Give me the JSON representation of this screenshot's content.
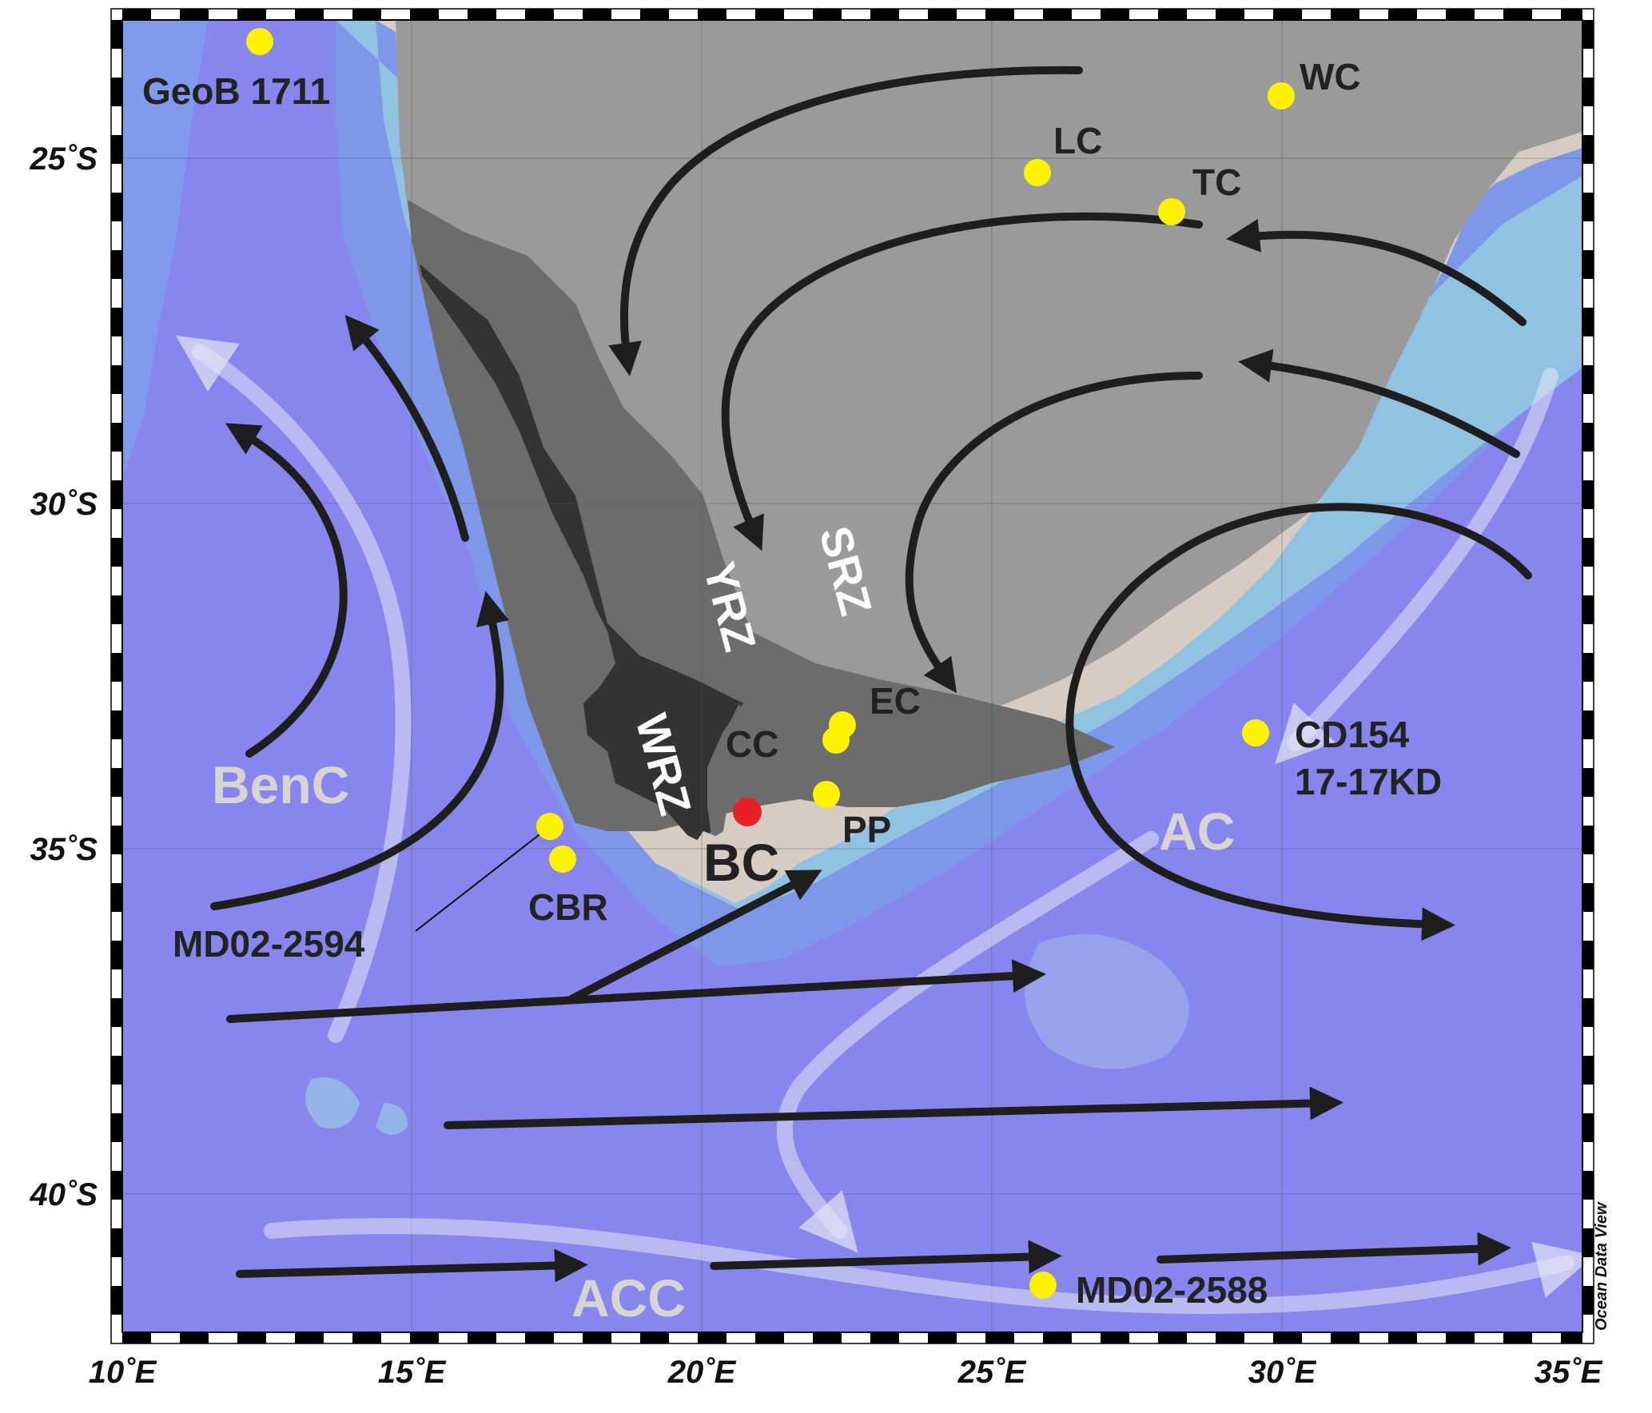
{
  "credit": "Ocean Data View",
  "axes": {
    "lon_ticks": [
      "10˚E",
      "15˚E",
      "20˚E",
      "25˚E",
      "30˚E",
      "35˚E"
    ],
    "lat_ticks": [
      "25˚S",
      "30˚S",
      "35˚S",
      "40˚S"
    ],
    "lon_range": [
      10,
      35
    ],
    "lat_range": [
      -23,
      -41.5
    ]
  },
  "zones": {
    "wrz": "WRZ",
    "yrz": "YRZ",
    "srz": "SRZ"
  },
  "currents": {
    "benc": "BenC",
    "ac": "AC",
    "acc": "ACC"
  },
  "sites": {
    "geob1711": {
      "label": "GeoB 1711",
      "lon": 12.4,
      "lat": -23.3
    },
    "wc": {
      "label": "WC",
      "lon": 29.8,
      "lat": -24.1
    },
    "lc": {
      "label": "LC",
      "lon": 25.6,
      "lat": -25.3
    },
    "tc": {
      "label": "TC",
      "lon": 27.8,
      "lat": -26.1
    },
    "ec": {
      "label": "EC",
      "lon": 22.2,
      "lat": -33.1
    },
    "cc": {
      "label": "CC",
      "lon": 22.1,
      "lat": -33.4
    },
    "pp": {
      "label": "PP",
      "lon": 21.8,
      "lat": -34.2
    },
    "bc": {
      "label": "BC",
      "lon": 20.7,
      "lat": -34.4
    },
    "cbr": {
      "label": "CBR",
      "lon": 17.2,
      "lat": -35.1
    },
    "md022594": {
      "label": "MD02-2594",
      "lon": 17.1,
      "lat": -34.7
    },
    "cd154": {
      "label_line1": "CD154",
      "label_line2": "17-17KD",
      "lon": 29.2,
      "lat": -33.3
    },
    "md022588": {
      "label": "MD02-2588",
      "lon": 25.6,
      "lat": -41.2
    }
  },
  "colors": {
    "ocean_deep": "#8484ee",
    "ocean_mid": "#7f9de8",
    "ocean_shelf": "#8fc6df",
    "coast_sand": "#d6ccc4",
    "land_light": "#9a9a9a",
    "land_mid": "#6c6c6c",
    "land_dark": "#333333",
    "site_yellow": "#fff200",
    "site_red": "#e8202a",
    "arrow_dark": "#1e1e1e",
    "arrow_light": "#e4e6f4"
  }
}
